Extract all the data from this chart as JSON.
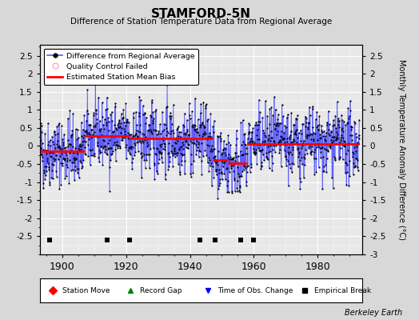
{
  "title": "STAMFORD-5N",
  "subtitle": "Difference of Station Temperature Data from Regional Average",
  "ylabel": "Monthly Temperature Anomaly Difference (°C)",
  "xlabel_ticks": [
    1900,
    1920,
    1940,
    1960,
    1980
  ],
  "xlim": [
    1893,
    1994
  ],
  "ylim": [
    -3,
    2.8
  ],
  "yticks_left": [
    -2.5,
    -2,
    -1.5,
    -1,
    -0.5,
    0,
    0.5,
    1,
    1.5,
    2,
    2.5
  ],
  "yticks_right": [
    -3,
    -2.5,
    -2,
    -1.5,
    -1,
    -0.5,
    0,
    0.5,
    1,
    1.5,
    2,
    2.5
  ],
  "bg_color": "#e8e8e8",
  "outer_bg": "#d8d8d8",
  "grid_color": "#ffffff",
  "line_color": "#5555ff",
  "dot_color": "#000000",
  "bias_color": "#ff0000",
  "watermark": "Berkeley Earth",
  "seed": 42,
  "time_start": 1893,
  "time_end": 1993,
  "bias_segments": [
    {
      "x_start": 1893.0,
      "x_end": 1907.0,
      "bias": -0.15
    },
    {
      "x_start": 1907.0,
      "x_end": 1921.0,
      "bias": 0.28
    },
    {
      "x_start": 1921.0,
      "x_end": 1947.0,
      "bias": 0.2
    },
    {
      "x_start": 1947.0,
      "x_end": 1952.0,
      "bias": -0.38
    },
    {
      "x_start": 1952.0,
      "x_end": 1958.0,
      "bias": -0.48
    },
    {
      "x_start": 1958.0,
      "x_end": 1993.0,
      "bias": 0.05
    }
  ],
  "empirical_breaks": [
    1896,
    1914,
    1921,
    1943,
    1948,
    1956,
    1960
  ],
  "noise_scale": 0.62
}
